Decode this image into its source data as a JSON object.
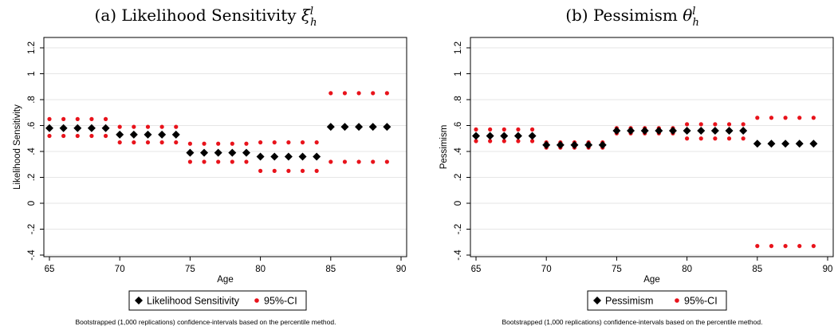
{
  "chart_data": [
    {
      "type": "scatter",
      "title": "(a) Likelihood Sensitivity",
      "title_symbol": "ξ",
      "title_sub": "h",
      "title_sup": "l",
      "xlabel": "Age",
      "ylabel": "Likelihood Sensitivity",
      "xlim": [
        65,
        90
      ],
      "ylim": [
        -0.4,
        1.2
      ],
      "xticks": [
        "65",
        "70",
        "75",
        "80",
        "85",
        "90"
      ],
      "xtick_values": [
        65,
        70,
        75,
        80,
        85,
        90
      ],
      "yticks": [
        "-.4",
        "-.2",
        "0",
        ".2",
        ".4",
        ".6",
        ".8",
        "1",
        "1.2"
      ],
      "ytick_values": [
        -0.4,
        -0.2,
        0,
        0.2,
        0.4,
        0.6,
        0.8,
        1,
        1.2
      ],
      "grid": true,
      "legend_position": "bottom",
      "x": [
        65,
        66,
        67,
        68,
        69,
        70,
        71,
        72,
        73,
        74,
        75,
        76,
        77,
        78,
        79,
        80,
        81,
        82,
        83,
        84,
        85,
        86,
        87,
        88,
        89
      ],
      "series": [
        {
          "name": "Likelihood Sensitivity",
          "marker": "diamond",
          "color": "#000000",
          "values": [
            0.58,
            0.58,
            0.58,
            0.58,
            0.58,
            0.53,
            0.53,
            0.53,
            0.53,
            0.53,
            0.39,
            0.39,
            0.39,
            0.39,
            0.39,
            0.36,
            0.36,
            0.36,
            0.36,
            0.36,
            0.59,
            0.59,
            0.59,
            0.59,
            0.59
          ]
        },
        {
          "name": "95%-CI",
          "marker": "dot",
          "color": "#e8131b",
          "upper": [
            0.65,
            0.65,
            0.65,
            0.65,
            0.65,
            0.59,
            0.59,
            0.59,
            0.59,
            0.59,
            0.46,
            0.46,
            0.46,
            0.46,
            0.46,
            0.47,
            0.47,
            0.47,
            0.47,
            0.47,
            0.85,
            0.85,
            0.85,
            0.85,
            0.85
          ],
          "lower": [
            0.52,
            0.52,
            0.52,
            0.52,
            0.52,
            0.47,
            0.47,
            0.47,
            0.47,
            0.47,
            0.32,
            0.32,
            0.32,
            0.32,
            0.32,
            0.25,
            0.25,
            0.25,
            0.25,
            0.25,
            0.32,
            0.32,
            0.32,
            0.32,
            0.32
          ]
        }
      ],
      "note": "Bootstrapped (1,000 replications) confidence-intervals based on the percentile method."
    },
    {
      "type": "scatter",
      "title": "(b) Pessimism",
      "title_symbol": "θ",
      "title_sub": "h",
      "title_sup": "l",
      "xlabel": "Age",
      "ylabel": "Pessimism",
      "xlim": [
        65,
        90
      ],
      "ylim": [
        -0.4,
        1.2
      ],
      "xticks": [
        "65",
        "70",
        "75",
        "80",
        "85",
        "90"
      ],
      "xtick_values": [
        65,
        70,
        75,
        80,
        85,
        90
      ],
      "yticks": [
        "-.4",
        "-.2",
        "0",
        ".2",
        ".4",
        ".6",
        ".8",
        "1",
        "1.2"
      ],
      "ytick_values": [
        -0.4,
        -0.2,
        0,
        0.2,
        0.4,
        0.6,
        0.8,
        1,
        1.2
      ],
      "grid": true,
      "legend_position": "bottom",
      "x": [
        65,
        66,
        67,
        68,
        69,
        70,
        71,
        72,
        73,
        74,
        75,
        76,
        77,
        78,
        79,
        80,
        81,
        82,
        83,
        84,
        85,
        86,
        87,
        88,
        89
      ],
      "series": [
        {
          "name": "Pessimism",
          "marker": "diamond",
          "color": "#000000",
          "values": [
            0.52,
            0.52,
            0.52,
            0.52,
            0.52,
            0.45,
            0.45,
            0.45,
            0.45,
            0.45,
            0.56,
            0.56,
            0.56,
            0.56,
            0.56,
            0.56,
            0.56,
            0.56,
            0.56,
            0.56,
            0.46,
            0.46,
            0.46,
            0.46,
            0.46
          ]
        },
        {
          "name": "95%-CI",
          "marker": "dot",
          "color": "#e8131b",
          "upper": [
            0.57,
            0.57,
            0.57,
            0.57,
            0.57,
            0.47,
            0.47,
            0.47,
            0.47,
            0.47,
            0.58,
            0.58,
            0.58,
            0.58,
            0.58,
            0.61,
            0.61,
            0.61,
            0.61,
            0.61,
            0.66,
            0.66,
            0.66,
            0.66,
            0.66
          ],
          "lower": [
            0.48,
            0.48,
            0.48,
            0.48,
            0.48,
            0.43,
            0.43,
            0.43,
            0.43,
            0.43,
            0.54,
            0.54,
            0.54,
            0.54,
            0.54,
            0.5,
            0.5,
            0.5,
            0.5,
            0.5,
            -0.33,
            -0.33,
            -0.33,
            -0.33,
            -0.33
          ]
        }
      ],
      "note": "Bootstrapped (1,000 replications) confidence-intervals based on the percentile method."
    }
  ]
}
